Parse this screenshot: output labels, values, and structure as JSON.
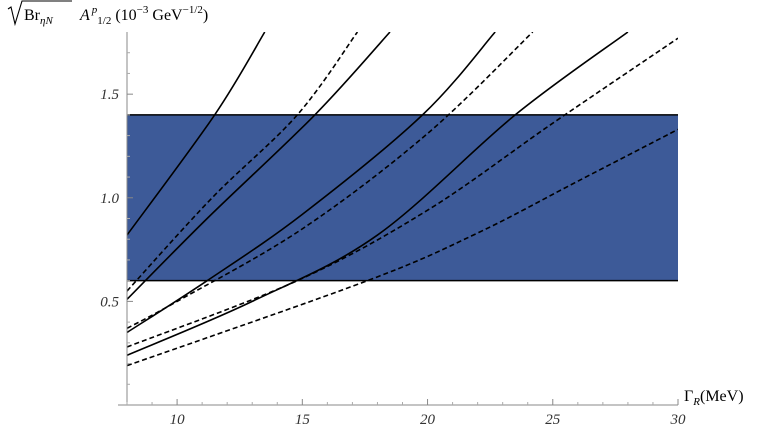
{
  "chart_data": {
    "type": "line",
    "title": "",
    "ylabel": {
      "sqrt_symbol": "√",
      "radicand": "Br",
      "radicand_sub": "ηN",
      "amp": "A",
      "amp_sup": "p",
      "amp_sub": "1/2",
      "unit_open": " (10",
      "unit_exp": "−3",
      "unit_mid": " GeV",
      "unit_exp2": "−1/2",
      "unit_close": ")"
    },
    "xlabel": {
      "gamma": "Γ",
      "sub": "R",
      "unit": "(MeV)"
    },
    "xlim": [
      8,
      30
    ],
    "ylim": [
      0,
      1.8
    ],
    "x_ticks": [
      10,
      15,
      20,
      25,
      30
    ],
    "x_tick_labels": [
      "10",
      "15",
      "20",
      "25",
      "30"
    ],
    "y_ticks": [
      0.5,
      1.0,
      1.5
    ],
    "y_tick_labels": [
      "0.5",
      "1.0",
      "1.5"
    ],
    "band": {
      "y_min": 0.6,
      "y_max": 1.4,
      "color": "#3d5a98"
    },
    "grid": false,
    "legend": "none",
    "series": [
      {
        "style": "solid",
        "x": [
          8,
          11.5,
          13.5
        ],
        "y": [
          0.82,
          1.4,
          1.8
        ]
      },
      {
        "style": "dashed",
        "x": [
          8,
          11.4,
          14.8,
          17.2
        ],
        "y": [
          0.55,
          1.0,
          1.4,
          1.8
        ]
      },
      {
        "style": "solid",
        "x": [
          8,
          11.2,
          15.5,
          18.5
        ],
        "y": [
          0.51,
          0.9,
          1.4,
          1.8
        ]
      },
      {
        "style": "dashed",
        "x": [
          8,
          10,
          15,
          20,
          24.2
        ],
        "y": [
          0.37,
          0.5,
          0.85,
          1.31,
          1.8
        ]
      },
      {
        "style": "solid",
        "x": [
          8,
          11.2,
          15,
          19.8,
          22.7
        ],
        "y": [
          0.35,
          0.6,
          0.92,
          1.4,
          1.8
        ]
      },
      {
        "style": "dashed",
        "x": [
          8,
          14.8,
          20,
          25,
          30
        ],
        "y": [
          0.28,
          0.6,
          0.94,
          1.36,
          1.77
        ]
      },
      {
        "style": "solid",
        "x": [
          8,
          13,
          18,
          23.5,
          28
        ],
        "y": [
          0.24,
          0.5,
          0.82,
          1.4,
          1.8
        ]
      },
      {
        "style": "dashed",
        "x": [
          8,
          17.6,
          22,
          26,
          30
        ],
        "y": [
          0.19,
          0.6,
          0.83,
          1.08,
          1.33
        ]
      }
    ]
  }
}
